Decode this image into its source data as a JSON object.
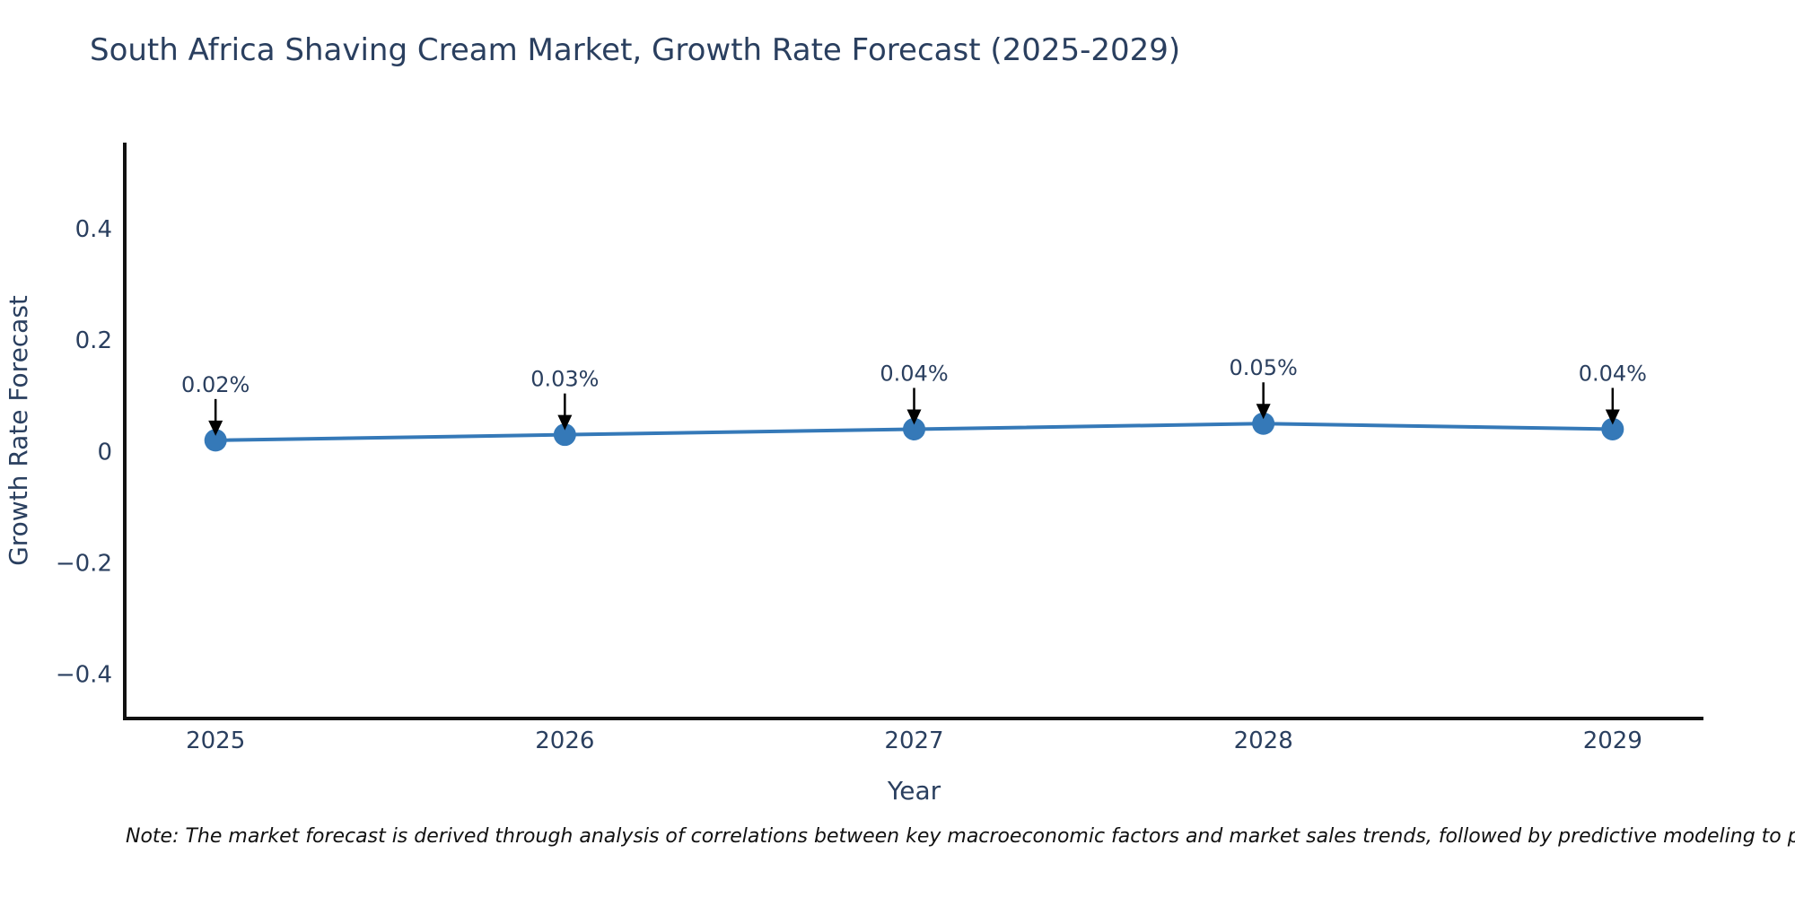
{
  "chart_data": {
    "type": "line",
    "title": "South Africa Shaving Cream Market, Growth Rate Forecast (2025-2029)",
    "xlabel": "Year",
    "ylabel": "Growth Rate Forecast",
    "x": [
      2025,
      2026,
      2027,
      2028,
      2029
    ],
    "series": [
      {
        "name": "Growth Rate Forecast",
        "values": [
          0.02,
          0.03,
          0.04,
          0.05,
          0.04
        ]
      }
    ],
    "point_labels": [
      "0.02%",
      "0.03%",
      "0.04%",
      "0.05%",
      "0.04%"
    ],
    "xticks": [
      {
        "value": 2025,
        "label": "2025"
      },
      {
        "value": 2026,
        "label": "2026"
      },
      {
        "value": 2027,
        "label": "2027"
      },
      {
        "value": 2028,
        "label": "2028"
      },
      {
        "value": 2029,
        "label": "2029"
      }
    ],
    "yticks": [
      {
        "value": -0.4,
        "label": "−0.4"
      },
      {
        "value": -0.2,
        "label": "−0.2"
      },
      {
        "value": 0,
        "label": "0"
      },
      {
        "value": 0.2,
        "label": "0.2"
      },
      {
        "value": 0.4,
        "label": "0.4"
      }
    ],
    "xlim": [
      2024.74,
      2029.26
    ],
    "ylim": [
      -0.48,
      0.555
    ],
    "grid": false,
    "legend": "none",
    "colors": {
      "line": "#3579b8",
      "marker": "#3579b8",
      "axis": "#111111",
      "text": "#2a3f5f",
      "annotation_text": "#2a3f5f",
      "annotation_arrow": "#000000",
      "background": "#ffffff"
    }
  },
  "note": {
    "text": "Note: The market forecast is derived through analysis of correlations between key macroeconomic factors and market sales trends, followed by predictive modeling to project future sales."
  }
}
